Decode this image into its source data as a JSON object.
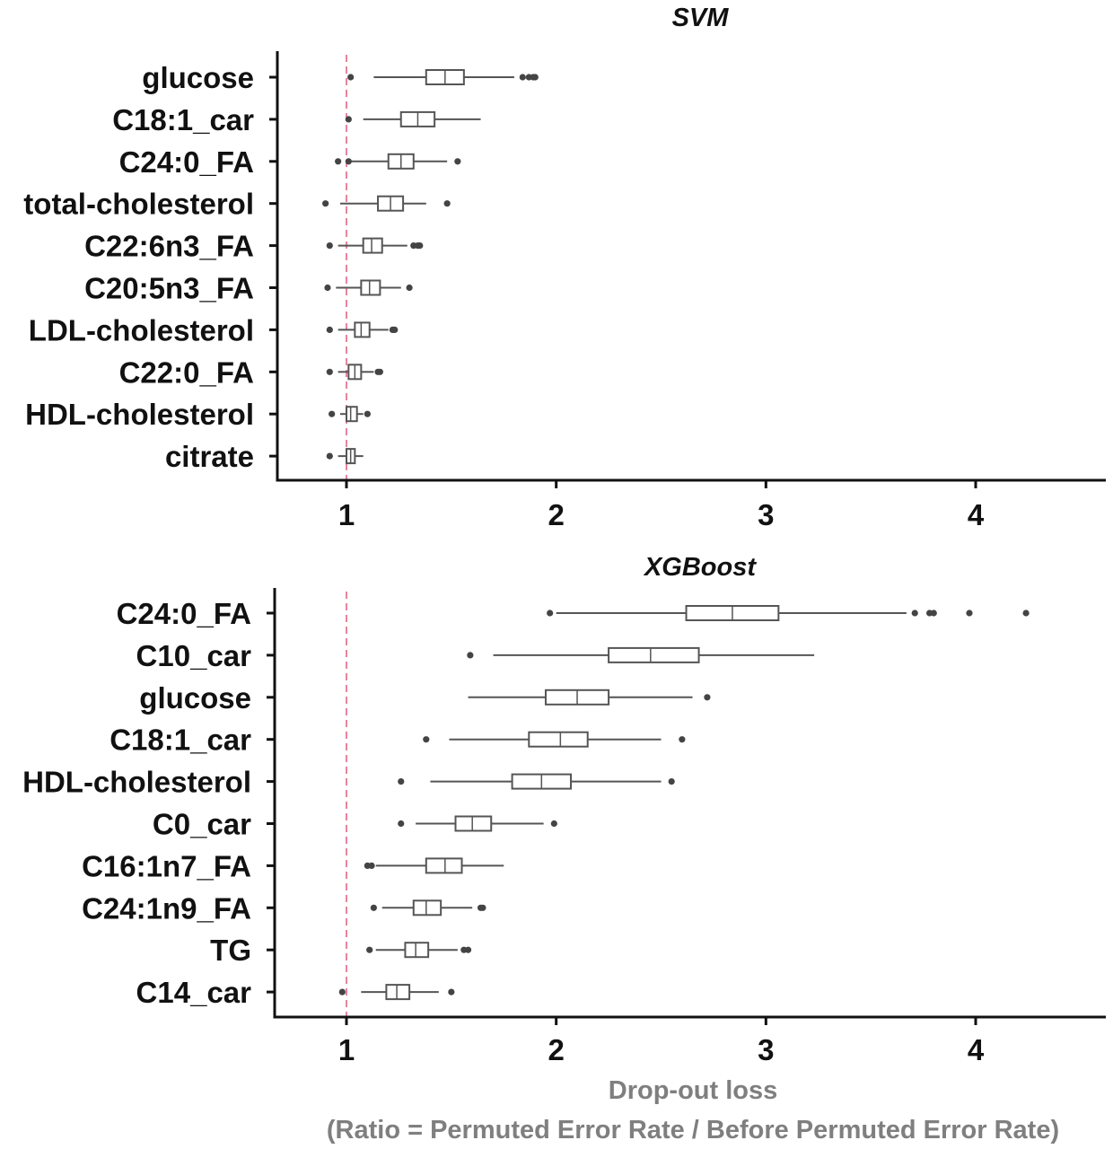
{
  "chart_data": [
    {
      "type": "box",
      "title": "SVM",
      "xlabel": "",
      "ylabel": "",
      "xlim": [
        0.67,
        4.63
      ],
      "xticks": [
        "1",
        "2",
        "3",
        "4"
      ],
      "reference_line": 1,
      "grid": false,
      "categories": [
        "glucose",
        "C18:1_car",
        "C24:0_FA",
        "total-cholesterol",
        "C22:6n3_FA",
        "C20:5n3_FA",
        "LDL-cholesterol",
        "C22:0_FA",
        "HDL-cholesterol",
        "citrate"
      ],
      "boxes": [
        {
          "whisker_low": 1.13,
          "q1": 1.38,
          "median": 1.47,
          "q3": 1.56,
          "whisker_high": 1.8,
          "outliers": [
            1.02,
            1.84,
            1.87,
            1.89,
            1.9
          ]
        },
        {
          "whisker_low": 1.08,
          "q1": 1.26,
          "median": 1.34,
          "q3": 1.42,
          "whisker_high": 1.64,
          "outliers": [
            1.01
          ]
        },
        {
          "whisker_low": 1.02,
          "q1": 1.2,
          "median": 1.26,
          "q3": 1.32,
          "whisker_high": 1.48,
          "outliers": [
            0.96,
            1.01,
            1.53
          ]
        },
        {
          "whisker_low": 0.97,
          "q1": 1.15,
          "median": 1.21,
          "q3": 1.27,
          "whisker_high": 1.38,
          "outliers": [
            0.9,
            1.48
          ]
        },
        {
          "whisker_low": 0.96,
          "q1": 1.08,
          "median": 1.12,
          "q3": 1.17,
          "whisker_high": 1.29,
          "outliers": [
            0.92,
            1.32,
            1.34,
            1.35
          ]
        },
        {
          "whisker_low": 0.95,
          "q1": 1.07,
          "median": 1.11,
          "q3": 1.16,
          "whisker_high": 1.26,
          "outliers": [
            0.91,
            1.3
          ]
        },
        {
          "whisker_low": 0.96,
          "q1": 1.04,
          "median": 1.07,
          "q3": 1.11,
          "whisker_high": 1.2,
          "outliers": [
            0.92,
            1.22,
            1.23
          ]
        },
        {
          "whisker_low": 0.96,
          "q1": 1.01,
          "median": 1.04,
          "q3": 1.07,
          "whisker_high": 1.13,
          "outliers": [
            0.92,
            1.15,
            1.16
          ]
        },
        {
          "whisker_low": 0.97,
          "q1": 1.0,
          "median": 1.02,
          "q3": 1.05,
          "whisker_high": 1.08,
          "outliers": [
            0.93,
            1.1
          ]
        },
        {
          "whisker_low": 0.96,
          "q1": 1.0,
          "median": 1.02,
          "q3": 1.04,
          "whisker_high": 1.08,
          "outliers": [
            0.92
          ]
        }
      ]
    },
    {
      "type": "box",
      "title": "XGBoost",
      "xlabel": "Drop-out loss",
      "xlabel_sub": "(Ratio = Permuted Error Rate / Before Permuted Error Rate)",
      "ylabel": "",
      "xlim": [
        0.67,
        4.63
      ],
      "xticks": [
        "1",
        "2",
        "3",
        "4"
      ],
      "reference_line": 1,
      "grid": false,
      "categories": [
        "C24:0_FA",
        "C10_car",
        "glucose",
        "C18:1_car",
        "HDL-cholesterol",
        "C0_car",
        "C16:1n7_FA",
        "C24:1n9_FA",
        "TG",
        "C14_car"
      ],
      "boxes": [
        {
          "whisker_low": 2.0,
          "q1": 2.62,
          "median": 2.84,
          "q3": 3.06,
          "whisker_high": 3.67,
          "outliers": [
            1.97,
            3.71,
            3.78,
            3.8,
            3.97,
            4.24
          ]
        },
        {
          "whisker_low": 1.7,
          "q1": 2.25,
          "median": 2.45,
          "q3": 2.68,
          "whisker_high": 3.23,
          "outliers": [
            1.59
          ]
        },
        {
          "whisker_low": 1.58,
          "q1": 1.95,
          "median": 2.1,
          "q3": 2.25,
          "whisker_high": 2.65,
          "outliers": [
            2.72
          ]
        },
        {
          "whisker_low": 1.49,
          "q1": 1.87,
          "median": 2.02,
          "q3": 2.15,
          "whisker_high": 2.5,
          "outliers": [
            1.38,
            2.6
          ]
        },
        {
          "whisker_low": 1.4,
          "q1": 1.79,
          "median": 1.93,
          "q3": 2.07,
          "whisker_high": 2.5,
          "outliers": [
            1.26,
            2.55
          ]
        },
        {
          "whisker_low": 1.33,
          "q1": 1.52,
          "median": 1.6,
          "q3": 1.69,
          "whisker_high": 1.94,
          "outliers": [
            1.26,
            1.99
          ]
        },
        {
          "whisker_low": 1.14,
          "q1": 1.38,
          "median": 1.47,
          "q3": 1.55,
          "whisker_high": 1.75,
          "outliers": [
            1.1,
            1.12
          ]
        },
        {
          "whisker_low": 1.17,
          "q1": 1.32,
          "median": 1.38,
          "q3": 1.45,
          "whisker_high": 1.6,
          "outliers": [
            1.13,
            1.64,
            1.65
          ]
        },
        {
          "whisker_low": 1.14,
          "q1": 1.28,
          "median": 1.33,
          "q3": 1.39,
          "whisker_high": 1.53,
          "outliers": [
            1.11,
            1.56,
            1.58
          ]
        },
        {
          "whisker_low": 1.07,
          "q1": 1.19,
          "median": 1.24,
          "q3": 1.3,
          "whisker_high": 1.44,
          "outliers": [
            0.98,
            1.5
          ]
        }
      ]
    }
  ],
  "colors": {
    "axis": "#111111",
    "box_stroke": "#555555",
    "whisker": "#555555",
    "outlier": "#444444",
    "reference_line": "#e8849c",
    "axis_title": "#7f7f7f"
  }
}
